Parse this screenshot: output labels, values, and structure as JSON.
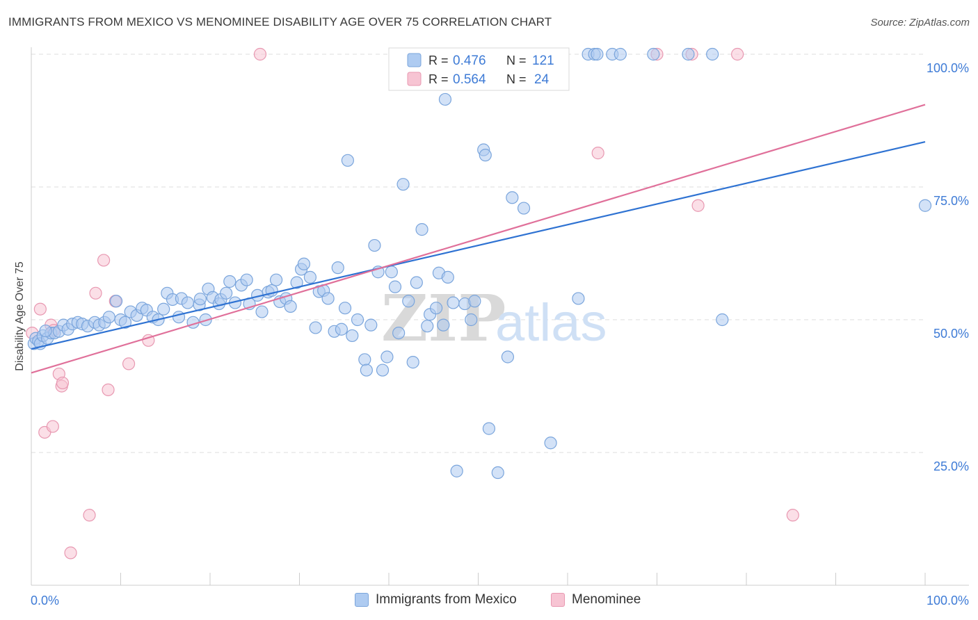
{
  "title": "IMMIGRANTS FROM MEXICO VS MENOMINEE DISABILITY AGE OVER 75 CORRELATION CHART",
  "source": "Source: ZipAtlas.com",
  "watermark": {
    "zip": "ZIP",
    "atlas": "atlas"
  },
  "colors": {
    "blue_fill": "#aecbf1",
    "blue_stroke": "#7aa5dc",
    "blue_line": "#2e72d2",
    "pink_fill": "#f7c4d3",
    "pink_stroke": "#e898b1",
    "pink_line": "#e0709a",
    "axis_label": "#3e7bd6",
    "grid": "#dddddd"
  },
  "legend_top": {
    "rows": [
      {
        "r_label": "R =",
        "r_value": "0.476",
        "n_label": "N =",
        "n_value": "121",
        "series": "blue"
      },
      {
        "r_label": "R =",
        "r_value": "0.564",
        "n_label": "N =",
        "n_value": "24",
        "series": "pink"
      }
    ]
  },
  "legend_bottom": [
    {
      "label": "Immigrants from Mexico",
      "series": "blue"
    },
    {
      "label": "Menominee",
      "series": "pink"
    }
  ],
  "chart_data": {
    "type": "scatter",
    "title": "IMMIGRANTS FROM MEXICO VS MENOMINEE DISABILITY AGE OVER 75 CORRELATION CHART",
    "xlabel": "",
    "ylabel": "Disability Age Over 75",
    "xlim": [
      0,
      100
    ],
    "ylim": [
      0,
      103
    ],
    "x_tick_labels": [
      {
        "value": 0,
        "label": "0.0%"
      },
      {
        "value": 100,
        "label": "100.0%"
      }
    ],
    "y_tick_labels": [
      {
        "value": 25,
        "label": "25.0%"
      },
      {
        "value": 50,
        "label": "50.0%"
      },
      {
        "value": 75,
        "label": "75.0%"
      },
      {
        "value": 100,
        "label": "100.0%"
      }
    ],
    "grid": true,
    "legend_position": "top-center",
    "series": [
      {
        "name": "Immigrants from Mexico",
        "color": "#aecbf1",
        "trend": {
          "x": [
            0,
            100
          ],
          "y": [
            44.5,
            83.5
          ]
        },
        "points": [
          [
            0.3,
            45.5
          ],
          [
            0.5,
            46.5
          ],
          [
            0.8,
            46
          ],
          [
            1,
            45.5
          ],
          [
            1.3,
            47
          ],
          [
            1.8,
            46.5
          ],
          [
            2.2,
            47.5
          ],
          [
            2.6,
            47.5
          ],
          [
            3.1,
            47.8
          ],
          [
            3.6,
            49
          ],
          [
            4.1,
            48.2
          ],
          [
            4.6,
            49.2
          ],
          [
            5.2,
            49.5
          ],
          [
            5.7,
            49.2
          ],
          [
            6.3,
            48.8
          ],
          [
            7.1,
            49.5
          ],
          [
            7.6,
            49
          ],
          [
            8.2,
            49.5
          ],
          [
            8.7,
            50.5
          ],
          [
            9.5,
            53.5
          ],
          [
            10,
            50
          ],
          [
            10.5,
            49.5
          ],
          [
            11.1,
            51.5
          ],
          [
            11.8,
            50.8
          ],
          [
            12.4,
            52.2
          ],
          [
            12.9,
            51.8
          ],
          [
            13.6,
            50.5
          ],
          [
            14.2,
            50
          ],
          [
            14.8,
            52
          ],
          [
            15.2,
            55
          ],
          [
            15.8,
            53.8
          ],
          [
            16.5,
            50.5
          ],
          [
            16.8,
            54
          ],
          [
            17.5,
            53.2
          ],
          [
            18.1,
            49.5
          ],
          [
            18.8,
            52.8
          ],
          [
            19.5,
            50
          ],
          [
            19.8,
            55.8
          ],
          [
            20.3,
            54.2
          ],
          [
            21,
            53
          ],
          [
            21.2,
            53.8
          ],
          [
            21.8,
            55
          ],
          [
            22.2,
            57.2
          ],
          [
            22.8,
            53.2
          ],
          [
            23.5,
            56.5
          ],
          [
            24.1,
            57.5
          ],
          [
            24.4,
            53
          ],
          [
            25.3,
            54.6
          ],
          [
            25.8,
            51.5
          ],
          [
            26.5,
            55.2
          ],
          [
            26.9,
            55.5
          ],
          [
            27.4,
            57.5
          ],
          [
            27.8,
            53.4
          ],
          [
            28.5,
            54
          ],
          [
            29,
            52.5
          ],
          [
            29.7,
            57
          ],
          [
            30.2,
            59.5
          ],
          [
            30.5,
            60.5
          ],
          [
            31.2,
            58
          ],
          [
            31.8,
            48.5
          ],
          [
            32.2,
            55.3
          ],
          [
            32.7,
            55.5
          ],
          [
            33.2,
            54
          ],
          [
            33.9,
            47.8
          ],
          [
            34.3,
            59.8
          ],
          [
            34.7,
            48.2
          ],
          [
            35.1,
            52.2
          ],
          [
            35.9,
            47
          ],
          [
            36.5,
            50
          ],
          [
            37.3,
            42.5
          ],
          [
            37.5,
            40.5
          ],
          [
            38,
            49
          ],
          [
            38.4,
            64
          ],
          [
            38.8,
            59
          ],
          [
            39.3,
            40.5
          ],
          [
            39.8,
            43
          ],
          [
            40.3,
            59
          ],
          [
            40.7,
            56.2
          ],
          [
            41.1,
            47.5
          ],
          [
            41.6,
            75.5
          ],
          [
            42.2,
            53.5
          ],
          [
            42.7,
            42
          ],
          [
            43.1,
            57
          ],
          [
            43.7,
            67
          ],
          [
            44.3,
            48.8
          ],
          [
            44.6,
            51
          ],
          [
            45.3,
            52.2
          ],
          [
            45.6,
            58.8
          ],
          [
            46.1,
            49
          ],
          [
            46.6,
            58
          ],
          [
            47.2,
            53.2
          ],
          [
            47.6,
            21.5
          ],
          [
            48.5,
            53
          ],
          [
            49.2,
            50
          ],
          [
            49.6,
            53.5
          ],
          [
            50.6,
            82
          ],
          [
            50.8,
            81
          ],
          [
            51.2,
            29.5
          ],
          [
            52.2,
            21.2
          ],
          [
            53.3,
            43
          ],
          [
            53.8,
            73
          ],
          [
            55.1,
            71
          ],
          [
            56,
            96
          ],
          [
            57.5,
            100
          ],
          [
            58.7,
            100
          ],
          [
            58.1,
            26.8
          ],
          [
            61.2,
            54
          ],
          [
            62.3,
            100
          ],
          [
            63,
            100
          ],
          [
            65,
            100
          ],
          [
            73.5,
            100
          ],
          [
            76.2,
            100
          ],
          [
            77.3,
            50
          ],
          [
            100,
            71.5
          ],
          [
            69.6,
            100
          ],
          [
            65.9,
            100
          ],
          [
            18.9,
            53.9
          ],
          [
            46.3,
            91.5
          ],
          [
            35.4,
            80
          ],
          [
            63.3,
            100
          ],
          [
            1.6,
            47.9
          ]
        ]
      },
      {
        "name": "Menominee",
        "color": "#f7c4d3",
        "trend": {
          "x": [
            0,
            100
          ],
          "y": [
            40,
            90.5
          ]
        },
        "points": [
          [
            0.1,
            47.5
          ],
          [
            1,
            52
          ],
          [
            2.2,
            49
          ],
          [
            2.5,
            48
          ],
          [
            3.1,
            39.8
          ],
          [
            3.4,
            37.5
          ],
          [
            3.5,
            38.1
          ],
          [
            1.5,
            28.8
          ],
          [
            2.4,
            29.9
          ],
          [
            4.4,
            6.1
          ],
          [
            6.5,
            13.2
          ],
          [
            7.2,
            55
          ],
          [
            8.1,
            61.2
          ],
          [
            8.6,
            36.8
          ],
          [
            9.4,
            53.5
          ],
          [
            10.9,
            41.7
          ],
          [
            13.1,
            46.1
          ],
          [
            25.6,
            100
          ],
          [
            70,
            100
          ],
          [
            73.9,
            100
          ],
          [
            79,
            100
          ],
          [
            63.4,
            81.4
          ],
          [
            74.6,
            71.5
          ],
          [
            85.2,
            13.2
          ]
        ]
      }
    ]
  }
}
